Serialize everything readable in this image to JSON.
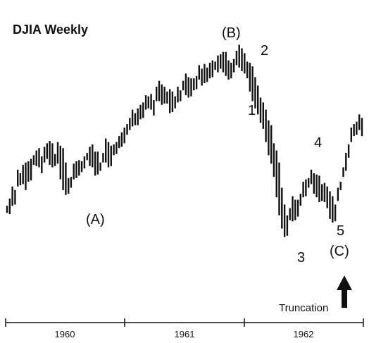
{
  "chart_data": {
    "type": "bar",
    "title": "DJIA Weekly",
    "x_tick_labels": [
      "1960",
      "1961",
      "1962"
    ],
    "wave_labels": [
      "(A)",
      "(B)",
      "1",
      "2",
      "3",
      "4",
      "5",
      "(C)"
    ],
    "annotation": "Truncation",
    "series": [
      {
        "values": [
          28,
          32,
          40,
          38,
          55,
          52,
          60,
          52,
          64,
          58,
          70,
          72,
          68,
          66,
          74,
          80,
          76,
          70,
          67,
          78,
          74,
          60,
          50,
          45,
          49,
          63,
          61,
          62,
          64,
          66,
          72,
          75,
          72,
          70,
          62,
          64,
          70,
          80,
          75,
          70,
          79,
          78,
          82,
          88,
          90,
          96,
          99,
          104,
          101,
          106,
          112,
          110,
          116,
          118,
          116,
          114,
          125,
          128,
          124,
          120,
          123,
          119,
          116,
          118,
          124,
          122,
          130,
          134,
          131,
          128,
          134,
          132,
          141,
          139,
          143,
          140,
          145,
          142,
          147,
          150,
          154,
          152,
          148,
          144,
          140,
          150,
          155,
          158,
          152,
          148,
          145,
          140,
          134,
          125,
          118,
          112,
          104,
          98,
          92,
          80,
          72,
          60,
          42,
          26,
          20,
          12,
          24,
          32,
          22,
          30,
          38,
          46,
          44,
          50,
          55,
          52,
          49,
          45,
          40,
          44,
          38,
          32,
          28,
          24,
          40,
          48,
          58,
          68,
          78,
          90,
          96,
          94,
          100,
          97
        ],
        "price_range": [
          0,
          160
        ]
      }
    ]
  }
}
